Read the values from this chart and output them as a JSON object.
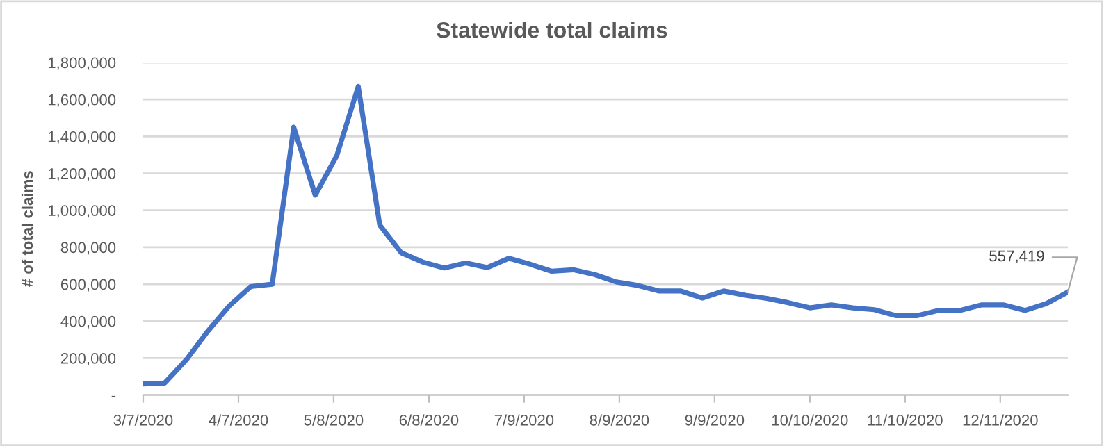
{
  "chart_data": {
    "type": "line",
    "title": "Statewide total claims",
    "ylabel": "# of total claims",
    "x": [
      "2020-03-07",
      "2020-03-14",
      "2020-03-21",
      "2020-03-28",
      "2020-04-04",
      "2020-04-11",
      "2020-04-18",
      "2020-04-25",
      "2020-05-02",
      "2020-05-09",
      "2020-05-16",
      "2020-05-23",
      "2020-05-30",
      "2020-06-06",
      "2020-06-13",
      "2020-06-20",
      "2020-06-27",
      "2020-07-04",
      "2020-07-11",
      "2020-07-18",
      "2020-07-25",
      "2020-08-01",
      "2020-08-08",
      "2020-08-15",
      "2020-08-22",
      "2020-08-29",
      "2020-09-05",
      "2020-09-12",
      "2020-09-19",
      "2020-09-26",
      "2020-10-03",
      "2020-10-10",
      "2020-10-17",
      "2020-10-24",
      "2020-10-31",
      "2020-11-07",
      "2020-11-14",
      "2020-11-21",
      "2020-11-28",
      "2020-12-05",
      "2020-12-12",
      "2020-12-19",
      "2020-12-26",
      "2021-01-02"
    ],
    "series": [
      {
        "color": "#4472c4",
        "values": [
          60000,
          65000,
          190000,
          345000,
          482000,
          587000,
          600000,
          1450000,
          1082000,
          1295000,
          1670000,
          920000,
          770000,
          720000,
          688000,
          715000,
          690000,
          740000,
          708000,
          670000,
          678000,
          652000,
          612000,
          593000,
          563000,
          563000,
          525000,
          563000,
          540000,
          523000,
          500000,
          472000,
          488000,
          472000,
          462000,
          430000,
          430000,
          458000,
          458000,
          488000,
          488000,
          458000,
          495000,
          557419
        ],
        "value_labels": [
          null,
          null,
          null,
          null,
          null,
          null,
          null,
          null,
          null,
          null,
          null,
          null,
          null,
          null,
          null,
          null,
          null,
          null,
          null,
          null,
          null,
          null,
          null,
          null,
          null,
          null,
          null,
          null,
          null,
          null,
          null,
          null,
          null,
          null,
          null,
          null,
          null,
          null,
          null,
          null,
          null,
          null,
          null,
          "557,419"
        ]
      }
    ],
    "xlim": [
      "2020-03-07",
      "2021-01-02"
    ],
    "xticks": [
      {
        "value": "2020-03-07",
        "label": "3/7/2020"
      },
      {
        "value": "2020-04-07",
        "label": "4/7/2020"
      },
      {
        "value": "2020-05-08",
        "label": "5/8/2020"
      },
      {
        "value": "2020-06-08",
        "label": "6/8/2020"
      },
      {
        "value": "2020-07-09",
        "label": "7/9/2020"
      },
      {
        "value": "2020-08-09",
        "label": "8/9/2020"
      },
      {
        "value": "2020-09-09",
        "label": "9/9/2020"
      },
      {
        "value": "2020-10-10",
        "label": "10/10/2020"
      },
      {
        "value": "2020-11-10",
        "label": "11/10/2020"
      },
      {
        "value": "2020-12-11",
        "label": "12/11/2020"
      }
    ],
    "ylim": [
      0,
      1800000
    ],
    "yticks": [
      {
        "value": 0,
        "label": "-"
      },
      {
        "value": 200000,
        "label": "200,000"
      },
      {
        "value": 400000,
        "label": "400,000"
      },
      {
        "value": 600000,
        "label": "600,000"
      },
      {
        "value": 800000,
        "label": "800,000"
      },
      {
        "value": 1000000,
        "label": "1,000,000"
      },
      {
        "value": 1200000,
        "label": "1,200,000"
      },
      {
        "value": 1400000,
        "label": "1,400,000"
      },
      {
        "value": 1600000,
        "label": "1,600,000"
      },
      {
        "value": 1800000,
        "label": "1,800,000"
      }
    ],
    "grid": "y",
    "legend": false,
    "marker": "none",
    "line_style": "solid"
  }
}
